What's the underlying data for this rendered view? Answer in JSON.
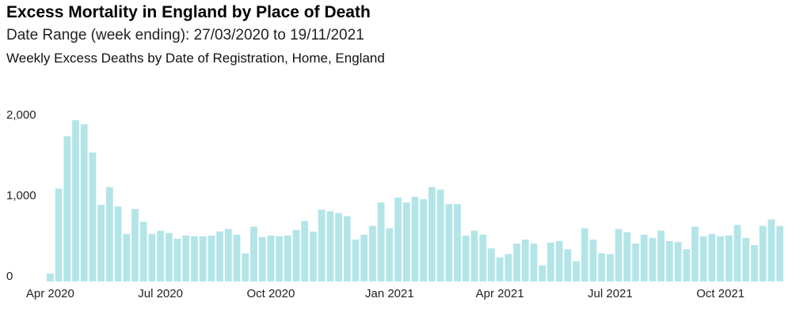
{
  "header": {
    "title": "Excess Mortality in England by Place of Death",
    "subtitle": "Date Range (week ending): 27/03/2020 to 19/11/2021",
    "chart_heading": "Weekly Excess Deaths by Date of Registration, Home, England"
  },
  "colors": {
    "bar": "#b3e5e8"
  },
  "chart_data": {
    "type": "bar",
    "title": "Weekly Excess Deaths by Date of Registration, Home, England",
    "xlabel": "",
    "ylabel": "",
    "ylim": [
      0,
      2000
    ],
    "yticks": [
      {
        "value": 0,
        "label": "0"
      },
      {
        "value": 1000,
        "label": "1,000"
      },
      {
        "value": 2000,
        "label": "2,000"
      }
    ],
    "xticks": [
      {
        "index": 0,
        "label": "Apr 2020"
      },
      {
        "index": 13,
        "label": "Jul 2020"
      },
      {
        "index": 26,
        "label": "Oct 2020"
      },
      {
        "index": 40,
        "label": "Jan 2021"
      },
      {
        "index": 53,
        "label": "Apr 2021"
      },
      {
        "index": 66,
        "label": "Jul 2021"
      },
      {
        "index": 79,
        "label": "Oct 2021"
      }
    ],
    "grid": false,
    "first_week_ending": "27/03/2020",
    "last_week_ending": "19/11/2021",
    "values": [
      100,
      1150,
      1800,
      2000,
      1950,
      1600,
      950,
      1170,
      930,
      590,
      900,
      740,
      590,
      630,
      600,
      530,
      570,
      560,
      560,
      570,
      620,
      650,
      580,
      350,
      680,
      550,
      570,
      560,
      570,
      640,
      750,
      620,
      890,
      870,
      850,
      810,
      520,
      580,
      690,
      980,
      660,
      1040,
      980,
      1050,
      1020,
      1170,
      1140,
      960,
      960,
      570,
      630,
      580,
      410,
      300,
      340,
      470,
      520,
      470,
      200,
      480,
      500,
      400,
      250,
      660,
      520,
      350,
      340,
      650,
      610,
      470,
      580,
      540,
      630,
      500,
      490,
      400,
      680,
      560,
      590,
      560,
      570,
      700,
      540,
      450,
      690,
      770,
      690
    ]
  }
}
